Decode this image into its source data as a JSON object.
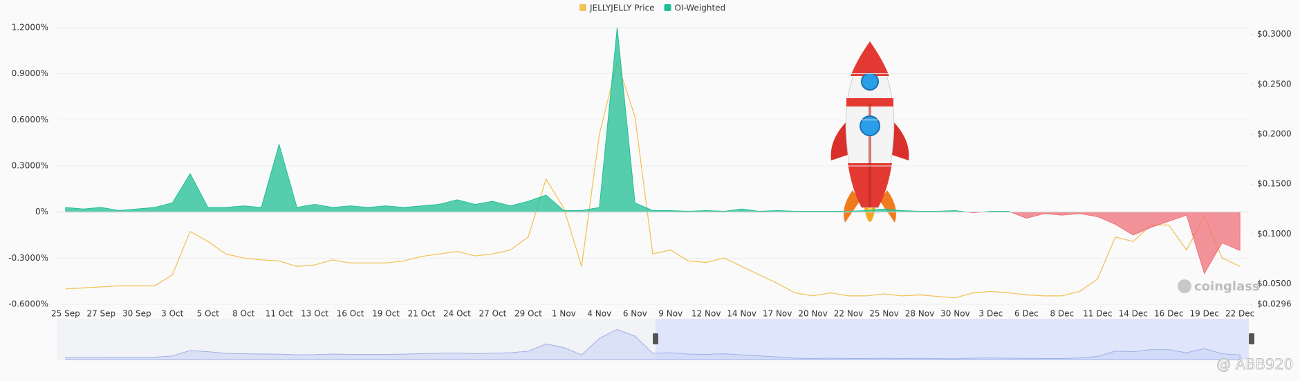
{
  "chart_data": {
    "type": "dual-axis-area-line",
    "legend_position": "top",
    "grid": true,
    "categories": [
      "25 Sep",
      null,
      "27 Sep",
      null,
      "30 Sep",
      null,
      "3 Oct",
      null,
      "5 Oct",
      null,
      "8 Oct",
      null,
      "11 Oct",
      null,
      "13 Oct",
      null,
      "16 Oct",
      null,
      "19 Oct",
      null,
      "21 Oct",
      null,
      "24 Oct",
      null,
      "27 Oct",
      null,
      "29 Oct",
      null,
      "1 Nov",
      null,
      "4 Nov",
      null,
      "6 Nov",
      null,
      "9 Nov",
      null,
      "12 Nov",
      null,
      "14 Nov",
      null,
      "17 Nov",
      null,
      "20 Nov",
      null,
      "22 Nov",
      null,
      "25 Nov",
      null,
      "28 Nov",
      null,
      "30 Nov",
      null,
      "3 Dec",
      null,
      "6 Dec",
      null,
      "8 Dec",
      null,
      "11 Dec",
      null,
      "14 Dec",
      null,
      "16 Dec",
      null,
      "19 Dec",
      null,
      "22 Dec"
    ],
    "series": [
      {
        "name": "JELLYJELLY Price",
        "color": "#f3c25a",
        "axis": "y2",
        "mark": "line",
        "values": [
          0.045,
          0.046,
          0.047,
          0.048,
          0.048,
          0.048,
          0.059,
          0.1025,
          0.0925,
          0.08,
          0.076,
          0.074,
          0.073,
          0.0675,
          0.069,
          0.074,
          0.071,
          0.071,
          0.071,
          0.073,
          0.0775,
          0.08,
          0.0825,
          0.078,
          0.08,
          0.084,
          0.097,
          0.155,
          0.126,
          0.0675,
          0.2,
          0.272,
          0.2175,
          0.08,
          0.084,
          0.073,
          0.0715,
          0.076,
          0.0675,
          0.059,
          0.0505,
          0.041,
          0.038,
          0.041,
          0.038,
          0.038,
          0.04,
          0.038,
          0.039,
          0.0375,
          0.036,
          0.041,
          0.0425,
          0.041,
          0.039,
          0.038,
          0.038,
          0.0425,
          0.055,
          0.097,
          0.0925,
          0.109,
          0.109,
          0.084,
          0.1175,
          0.076,
          0.0675
        ]
      },
      {
        "name": "OI-Weighted",
        "color": "#1fbf95",
        "negative_color": "#f07078",
        "axis": "y",
        "mark": "area",
        "values": [
          0.03,
          0.02,
          0.03,
          0.01,
          0.02,
          0.03,
          0.06,
          0.25,
          0.03,
          0.03,
          0.04,
          0.03,
          0.44,
          0.03,
          0.05,
          0.03,
          0.04,
          0.03,
          0.04,
          0.03,
          0.04,
          0.05,
          0.08,
          0.05,
          0.07,
          0.04,
          0.07,
          0.11,
          0.01,
          0.01,
          0.03,
          1.2,
          0.06,
          0.01,
          0.01,
          0.005,
          0.01,
          0.005,
          0.02,
          0.005,
          0.01,
          0.005,
          0.005,
          0.005,
          0.005,
          0.01,
          0.02,
          0.01,
          0.005,
          0.005,
          0.01,
          -0.005,
          0.005,
          0.005,
          -0.04,
          -0.01,
          -0.02,
          -0.01,
          -0.03,
          -0.08,
          -0.15,
          -0.1,
          -0.06,
          -0.02,
          -0.4,
          -0.2,
          -0.25
        ]
      }
    ],
    "ylim": [
      -0.6,
      1.2
    ],
    "yticks": [
      {
        "value": 1.2,
        "label": "1.2000%"
      },
      {
        "value": 0.9,
        "label": "0.9000%"
      },
      {
        "value": 0.6,
        "label": "0.6000%"
      },
      {
        "value": 0.3,
        "label": "0.3000%"
      },
      {
        "value": 0,
        "label": "0%"
      },
      {
        "value": -0.3,
        "label": "-0.3000%"
      },
      {
        "value": -0.6,
        "label": "-0.6000%"
      }
    ],
    "y2lim": [
      0.0296,
      0.3067
    ],
    "y2ticks": [
      {
        "value": 0.3,
        "label": "$0.3000"
      },
      {
        "value": 0.25,
        "label": "$0.2500"
      },
      {
        "value": 0.2,
        "label": "$0.2000"
      },
      {
        "value": 0.15,
        "label": "$0.1500"
      },
      {
        "value": 0.1,
        "label": "$0.1000"
      },
      {
        "value": 0.05,
        "label": "$0.0500"
      },
      {
        "value": 0.0296,
        "label": "$0.0296"
      }
    ],
    "watermark": "coinglass",
    "credit": "@ ABB920"
  }
}
